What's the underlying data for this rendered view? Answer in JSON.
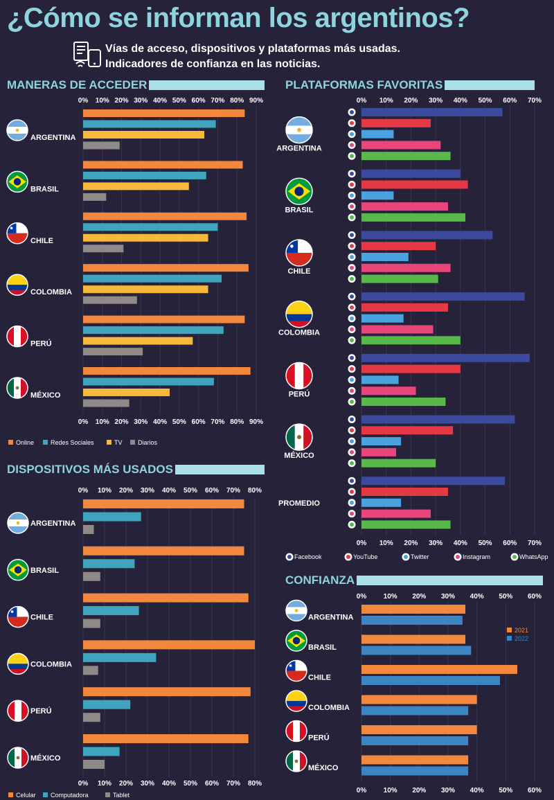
{
  "header": {
    "title": "¿Cómo se informan los argentinos?",
    "subtitle_line1": "Vías de acceso, dispositivos y plataformas más usadas.",
    "subtitle_line2": "Indicadores de confianza en las noticias."
  },
  "colors": {
    "Online": "#f2883d",
    "Redes Sociales": "#3fa4bd",
    "TV": "#f6b93b",
    "Diarios": "#8f8a87",
    "Celular": "#f2883d",
    "Computadora": "#3fa4bd",
    "Tablet": "#8f8a87",
    "Facebook": "#3b4a9c",
    "YouTube": "#e53945",
    "Twitter": "#4aa3df",
    "Instagram": "#e8457a",
    "WhatsApp": "#58b84a",
    "2021": "#f2883d",
    "2022": "#3d84c2",
    "title_accent": "#8fd3de",
    "background": "#26223a"
  },
  "chart_data": [
    {
      "id": "acceder",
      "type": "bar",
      "title": "MANERAS DE ACCEDER",
      "ticks": [
        "0%",
        "10%",
        "20%",
        "30%",
        "40%",
        "50%",
        "60%",
        "70%",
        "80%",
        "90%"
      ],
      "xlim": [
        0,
        90
      ],
      "categories": [
        "ARGENTINA",
        "BRASIL",
        "CHILE",
        "COLOMBIA",
        "PERÚ",
        "MÉXICO"
      ],
      "series": [
        {
          "name": "Online",
          "values": [
            84,
            83,
            85,
            86,
            84,
            87
          ]
        },
        {
          "name": "Redes Sociales",
          "values": [
            69,
            64,
            70,
            72,
            73,
            68
          ]
        },
        {
          "name": "TV",
          "values": [
            63,
            55,
            65,
            65,
            57,
            45
          ]
        },
        {
          "name": "Diarios",
          "values": [
            19,
            12,
            21,
            28,
            31,
            24
          ]
        }
      ],
      "legend": "bottom"
    },
    {
      "id": "dispositivos",
      "type": "bar",
      "title": "DISPOSITIVOS MÁS USADOS",
      "ticks": [
        "0%",
        "10%",
        "20%",
        "30%",
        "40%",
        "50%",
        "60%",
        "70%",
        "80%"
      ],
      "xlim": [
        0,
        80
      ],
      "categories": [
        "ARGENTINA",
        "BRASIL",
        "CHILE",
        "COLOMBIA",
        "PERÚ",
        "MÉXICO"
      ],
      "series": [
        {
          "name": "Celular",
          "values": [
            75,
            75,
            77,
            80,
            78,
            77
          ]
        },
        {
          "name": "Computadora",
          "values": [
            27,
            24,
            26,
            34,
            22,
            17
          ]
        },
        {
          "name": "Tablet",
          "values": [
            5,
            8,
            8,
            7,
            8,
            10
          ]
        }
      ],
      "legend": "bottom"
    },
    {
      "id": "plataformas",
      "type": "bar",
      "title": "PLATAFORMAS FAVORITAS",
      "ticks": [
        "0%",
        "10%",
        "20%",
        "30%",
        "40%",
        "50%",
        "60%",
        "70%"
      ],
      "xlim": [
        0,
        70
      ],
      "categories": [
        "ARGENTINA",
        "BRASIL",
        "CHILE",
        "COLOMBIA",
        "PERÚ",
        "MÉXICO",
        "PROMEDIO"
      ],
      "series": [
        {
          "name": "Facebook",
          "values": [
            57,
            40,
            53,
            66,
            68,
            62,
            58
          ]
        },
        {
          "name": "YouTube",
          "values": [
            28,
            43,
            30,
            35,
            40,
            37,
            35
          ]
        },
        {
          "name": "Twitter",
          "values": [
            13,
            13,
            19,
            17,
            15,
            16,
            16
          ]
        },
        {
          "name": "Instagram",
          "values": [
            32,
            35,
            36,
            29,
            22,
            14,
            28
          ]
        },
        {
          "name": "WhatsApp",
          "values": [
            36,
            42,
            31,
            40,
            34,
            30,
            36
          ]
        }
      ],
      "legend": "bottom"
    },
    {
      "id": "confianza",
      "type": "bar",
      "title": "CONFIANZA",
      "ticks": [
        "0%",
        "10%",
        "20%",
        "30%",
        "40%",
        "50%",
        "60%"
      ],
      "xlim": [
        0,
        60
      ],
      "categories": [
        "ARGENTINA",
        "BRASIL",
        "CHILE",
        "COLOMBIA",
        "PERÚ",
        "MÉXICO"
      ],
      "series": [
        {
          "name": "2021",
          "values": [
            36,
            36,
            54,
            40,
            40,
            37
          ]
        },
        {
          "name": "2022",
          "values": [
            35,
            38,
            48,
            37,
            37,
            37
          ]
        }
      ],
      "legend": "right"
    }
  ]
}
